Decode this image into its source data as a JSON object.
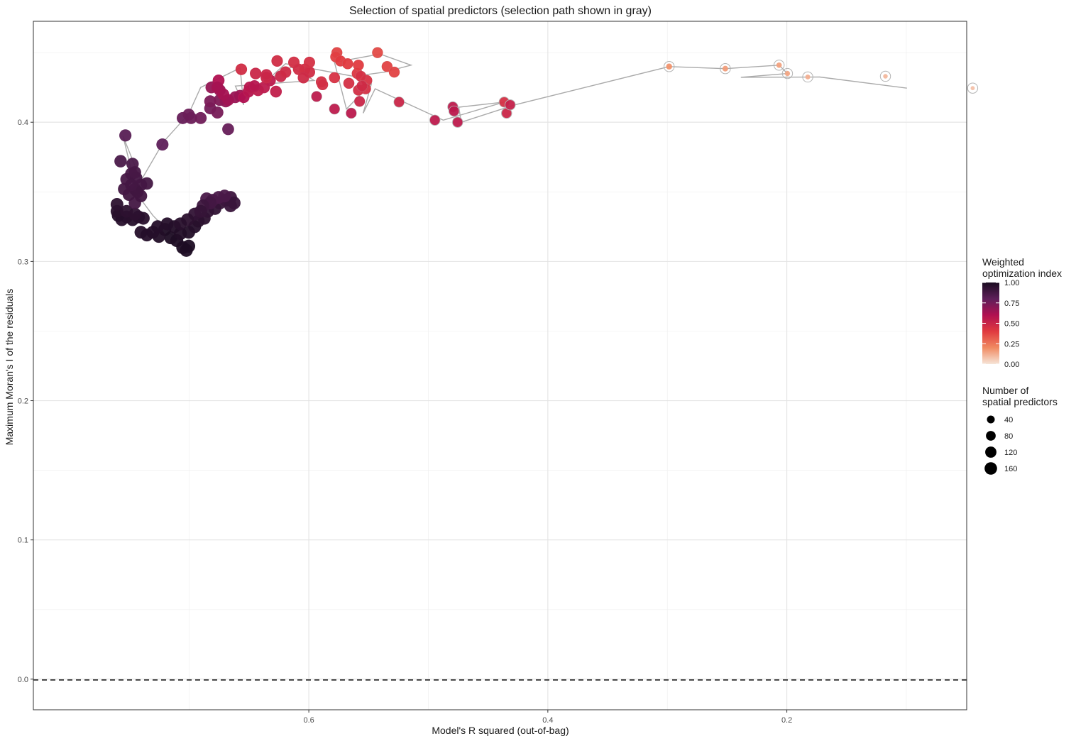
{
  "chart_data": {
    "type": "scatter",
    "title": "Selection of spatial predictors (selection path shown in gray)",
    "xlabel": "Model's R squared (out-of-bag)",
    "ylabel": "Maximum Moran's I of the residuals",
    "x_reversed": true,
    "xlim": [
      0.0495,
      0.8305
    ],
    "ylim": [
      -0.022,
      0.4725
    ],
    "x_ticks": [
      0.6,
      0.4,
      0.2
    ],
    "x_tick_labels": [
      "0.6",
      "0.4",
      "0.2"
    ],
    "y_ticks": [
      0.0,
      0.1,
      0.2,
      0.3,
      0.4
    ],
    "y_tick_labels": [
      "0.0",
      "0.1",
      "0.2",
      "0.3",
      "0.4"
    ],
    "grid": true,
    "reference_line": {
      "y": 0.0,
      "style": "dashed"
    },
    "legend_color": {
      "title_lines": [
        "Weighted",
        "optimization index"
      ],
      "ticks": [
        1.0,
        0.75,
        0.5,
        0.25,
        0.0
      ],
      "tick_labels": [
        "1.00",
        "0.75",
        "0.50",
        "0.25",
        "0.00"
      ],
      "placement": "right",
      "colors": [
        "#f6e5d8",
        "#f08b62",
        "#e03a3f",
        "#b11151",
        "#5e1f5a",
        "#1b0c21"
      ]
    },
    "legend_size": {
      "title_lines": [
        "Number of",
        "spatial predictors"
      ],
      "values": [
        40,
        80,
        120,
        160
      ],
      "labels": [
        "40",
        "80",
        "120",
        "160"
      ],
      "placement": "right"
    },
    "selection_path": [
      [
        0.0995,
        0.4245
      ],
      [
        0.1725,
        0.4325
      ],
      [
        0.2385,
        0.4323
      ],
      [
        0.1995,
        0.435
      ],
      [
        0.2065,
        0.441
      ],
      [
        0.2515,
        0.4385
      ],
      [
        0.2985,
        0.44
      ],
      [
        0.4275,
        0.4125
      ],
      [
        0.4725,
        0.4
      ],
      [
        0.4745,
        0.4108
      ],
      [
        0.4365,
        0.4145
      ],
      [
        0.4875,
        0.4015
      ],
      [
        0.5445,
        0.424
      ],
      [
        0.5545,
        0.4065
      ],
      [
        0.5475,
        0.428
      ],
      [
        0.5685,
        0.4095
      ],
      [
        0.5785,
        0.443
      ],
      [
        0.5405,
        0.449
      ],
      [
        0.5145,
        0.441
      ],
      [
        0.5365,
        0.436
      ],
      [
        0.5625,
        0.433
      ],
      [
        0.6195,
        0.442
      ],
      [
        0.6345,
        0.4305
      ],
      [
        0.6145,
        0.4395
      ],
      [
        0.5955,
        0.43
      ],
      [
        0.6615,
        0.426
      ],
      [
        0.6545,
        0.4125
      ],
      [
        0.6575,
        0.439
      ],
      [
        0.6905,
        0.425
      ],
      [
        0.7005,
        0.406
      ],
      [
        0.7215,
        0.386
      ],
      [
        0.7405,
        0.358
      ],
      [
        0.7555,
        0.39
      ],
      [
        0.7435,
        0.348
      ],
      [
        0.7305,
        0.333
      ],
      [
        0.7155,
        0.32
      ],
      [
        0.7005,
        0.308
      ]
    ],
    "clusters": [
      {
        "name": "",
        "points": [
          [
            0.7205,
            0.323,
            0.99,
            178
          ],
          [
            0.7155,
            0.317,
            0.99,
            178
          ],
          [
            0.7105,
            0.315,
            0.99,
            178
          ],
          [
            0.7055,
            0.31,
            0.99,
            178
          ],
          [
            0.7025,
            0.308,
            0.99,
            178
          ],
          [
            0.7125,
            0.325,
            0.98,
            175
          ],
          [
            0.7075,
            0.32,
            0.98,
            175
          ],
          [
            0.7005,
            0.311,
            0.99,
            178
          ],
          [
            0.7005,
            0.321,
            0.98,
            175
          ],
          [
            0.6955,
            0.325,
            0.97,
            174
          ],
          [
            0.7255,
            0.318,
            0.98,
            174
          ],
          [
            0.7305,
            0.321,
            0.97,
            172
          ],
          [
            0.7355,
            0.319,
            0.97,
            172
          ],
          [
            0.7405,
            0.321,
            0.97,
            170
          ],
          [
            0.7265,
            0.325,
            0.97,
            172
          ],
          [
            0.6925,
            0.329,
            0.96,
            172
          ],
          [
            0.6875,
            0.331,
            0.95,
            172
          ],
          [
            0.6845,
            0.336,
            0.93,
            172
          ],
          [
            0.6785,
            0.338,
            0.93,
            172
          ],
          [
            0.6745,
            0.342,
            0.92,
            172
          ],
          [
            0.6695,
            0.344,
            0.9,
            172
          ],
          [
            0.6655,
            0.346,
            0.9,
            172
          ],
          [
            0.6625,
            0.342,
            0.91,
            172
          ],
          [
            0.6655,
            0.34,
            0.91,
            172
          ],
          [
            0.6855,
            0.345,
            0.86,
            170
          ],
          [
            0.6805,
            0.344,
            0.87,
            170
          ],
          [
            0.6755,
            0.346,
            0.86,
            170
          ],
          [
            0.6705,
            0.347,
            0.86,
            170
          ],
          [
            0.6825,
            0.342,
            0.88,
            170
          ],
          [
            0.6885,
            0.34,
            0.9,
            170
          ],
          [
            0.6955,
            0.334,
            0.93,
            172
          ],
          [
            0.6905,
            0.336,
            0.92,
            172
          ],
          [
            0.7015,
            0.33,
            0.95,
            172
          ],
          [
            0.7075,
            0.327,
            0.96,
            172
          ],
          [
            0.7185,
            0.327,
            0.97,
            172
          ],
          [
            0.7475,
            0.33,
            0.97,
            170
          ],
          [
            0.7525,
            0.332,
            0.96,
            170
          ],
          [
            0.7565,
            0.33,
            0.96,
            170
          ],
          [
            0.7595,
            0.333,
            0.97,
            170
          ],
          [
            0.7605,
            0.336,
            0.96,
            170
          ],
          [
            0.7605,
            0.341,
            0.95,
            170
          ],
          [
            0.7425,
            0.332,
            0.96,
            170
          ],
          [
            0.7385,
            0.331,
            0.96,
            170
          ],
          [
            0.7455,
            0.334,
            0.95,
            170
          ],
          [
            0.7525,
            0.336,
            0.95,
            170
          ]
        ]
      },
      {
        "name": "",
        "points": [
          [
            0.7455,
            0.342,
            0.88,
            160
          ],
          [
            0.7505,
            0.348,
            0.89,
            162
          ],
          [
            0.7455,
            0.352,
            0.89,
            162
          ],
          [
            0.7405,
            0.355,
            0.88,
            160
          ],
          [
            0.7355,
            0.356,
            0.88,
            158
          ],
          [
            0.7545,
            0.352,
            0.88,
            160
          ],
          [
            0.7525,
            0.359,
            0.87,
            160
          ],
          [
            0.7485,
            0.363,
            0.87,
            160
          ],
          [
            0.7445,
            0.36,
            0.88,
            160
          ],
          [
            0.7405,
            0.347,
            0.89,
            160
          ],
          [
            0.7435,
            0.35,
            0.89,
            160
          ],
          [
            0.7485,
            0.355,
            0.88,
            160
          ],
          [
            0.7575,
            0.372,
            0.86,
            158
          ],
          [
            0.7475,
            0.37,
            0.86,
            158
          ],
          [
            0.7455,
            0.364,
            0.87,
            158
          ]
        ]
      },
      {
        "name": "",
        "points": [
          [
            0.7535,
            0.3905,
            0.82,
            150
          ],
          [
            0.7225,
            0.384,
            0.8,
            148
          ],
          [
            0.7055,
            0.403,
            0.78,
            146
          ],
          [
            0.7005,
            0.4055,
            0.77,
            145
          ],
          [
            0.6985,
            0.403,
            0.77,
            145
          ],
          [
            0.6905,
            0.403,
            0.76,
            145
          ],
          [
            0.6825,
            0.41,
            0.75,
            145
          ],
          [
            0.6765,
            0.407,
            0.74,
            145
          ],
          [
            0.6825,
            0.415,
            0.73,
            145
          ],
          [
            0.6745,
            0.416,
            0.72,
            145
          ],
          [
            0.6675,
            0.395,
            0.78,
            140
          ],
          [
            0.6695,
            0.415,
            0.68,
            142
          ],
          [
            0.6615,
            0.418,
            0.66,
            140
          ],
          [
            0.6575,
            0.419,
            0.65,
            140
          ],
          [
            0.6745,
            0.423,
            0.66,
            140
          ],
          [
            0.6815,
            0.425,
            0.67,
            140
          ],
          [
            0.6755,
            0.43,
            0.6,
            140
          ],
          [
            0.6765,
            0.425,
            0.63,
            140
          ],
          [
            0.6675,
            0.416,
            0.64,
            140
          ],
          [
            0.6715,
            0.42,
            0.63,
            140
          ]
        ]
      },
      {
        "name": "",
        "points": [
          [
            0.6545,
            0.418,
            0.6,
            136
          ],
          [
            0.6505,
            0.422,
            0.58,
            136
          ],
          [
            0.6495,
            0.425,
            0.57,
            136
          ],
          [
            0.6425,
            0.423,
            0.55,
            135
          ],
          [
            0.6375,
            0.425,
            0.55,
            135
          ],
          [
            0.6325,
            0.43,
            0.55,
            135
          ],
          [
            0.6275,
            0.422,
            0.53,
            135
          ],
          [
            0.6455,
            0.426,
            0.58,
            135
          ],
          [
            0.6565,
            0.438,
            0.47,
            130
          ],
          [
            0.6445,
            0.435,
            0.5,
            130
          ],
          [
            0.6355,
            0.432,
            0.5,
            130
          ],
          [
            0.6235,
            0.433,
            0.5,
            130
          ],
          [
            0.6195,
            0.436,
            0.48,
            128
          ],
          [
            0.6355,
            0.434,
            0.5,
            128
          ],
          [
            0.6265,
            0.444,
            0.47,
            128
          ],
          [
            0.6125,
            0.443,
            0.46,
            126
          ],
          [
            0.6085,
            0.438,
            0.47,
            126
          ],
          [
            0.6035,
            0.438,
            0.46,
            126
          ],
          [
            0.5995,
            0.436,
            0.47,
            126
          ],
          [
            0.6045,
            0.432,
            0.48,
            126
          ],
          [
            0.5995,
            0.443,
            0.45,
            124
          ]
        ]
      },
      {
        "name": "",
        "points": [
          [
            0.5895,
            0.429,
            0.45,
            115
          ],
          [
            0.5885,
            0.427,
            0.46,
            115
          ],
          [
            0.5785,
            0.432,
            0.44,
            112
          ],
          [
            0.5665,
            0.428,
            0.45,
            112
          ],
          [
            0.5595,
            0.435,
            0.42,
            110
          ],
          [
            0.5515,
            0.43,
            0.44,
            110
          ],
          [
            0.5585,
            0.441,
            0.4,
            110
          ],
          [
            0.5765,
            0.45,
            0.38,
            110
          ],
          [
            0.5775,
            0.447,
            0.39,
            110
          ],
          [
            0.5735,
            0.444,
            0.4,
            110
          ],
          [
            0.5675,
            0.442,
            0.4,
            110
          ],
          [
            0.5565,
            0.433,
            0.45,
            108
          ],
          [
            0.5425,
            0.45,
            0.36,
            108
          ],
          [
            0.5345,
            0.44,
            0.38,
            108
          ],
          [
            0.5285,
            0.436,
            0.38,
            108
          ],
          [
            0.5525,
            0.424,
            0.45,
            105
          ],
          [
            0.5585,
            0.423,
            0.46,
            105
          ],
          [
            0.5555,
            0.426,
            0.48,
            105
          ],
          [
            0.5575,
            0.415,
            0.5,
            100
          ]
        ]
      },
      {
        "name": "",
        "points": [
          [
            0.5935,
            0.4185,
            0.55,
            95
          ],
          [
            0.5785,
            0.4095,
            0.55,
            92
          ],
          [
            0.5645,
            0.4065,
            0.56,
            92
          ],
          [
            0.5245,
            0.4145,
            0.5,
            85
          ],
          [
            0.4945,
            0.4015,
            0.55,
            80
          ],
          [
            0.4795,
            0.411,
            0.55,
            80
          ],
          [
            0.4785,
            0.408,
            0.56,
            80
          ],
          [
            0.4755,
            0.4,
            0.55,
            78
          ],
          [
            0.4365,
            0.4145,
            0.45,
            78
          ],
          [
            0.4345,
            0.4065,
            0.5,
            76
          ],
          [
            0.4315,
            0.4125,
            0.52,
            76
          ]
        ]
      },
      {
        "name": "",
        "points": [
          [
            0.2985,
            0.44,
            0.18,
            15
          ],
          [
            0.2515,
            0.4385,
            0.16,
            12
          ],
          [
            0.2065,
            0.441,
            0.15,
            10
          ],
          [
            0.1995,
            0.435,
            0.14,
            8
          ],
          [
            0.1825,
            0.4325,
            0.12,
            6
          ],
          [
            0.1175,
            0.433,
            0.1,
            4
          ],
          [
            0.0445,
            0.4245,
            0.08,
            2
          ]
        ]
      }
    ]
  }
}
